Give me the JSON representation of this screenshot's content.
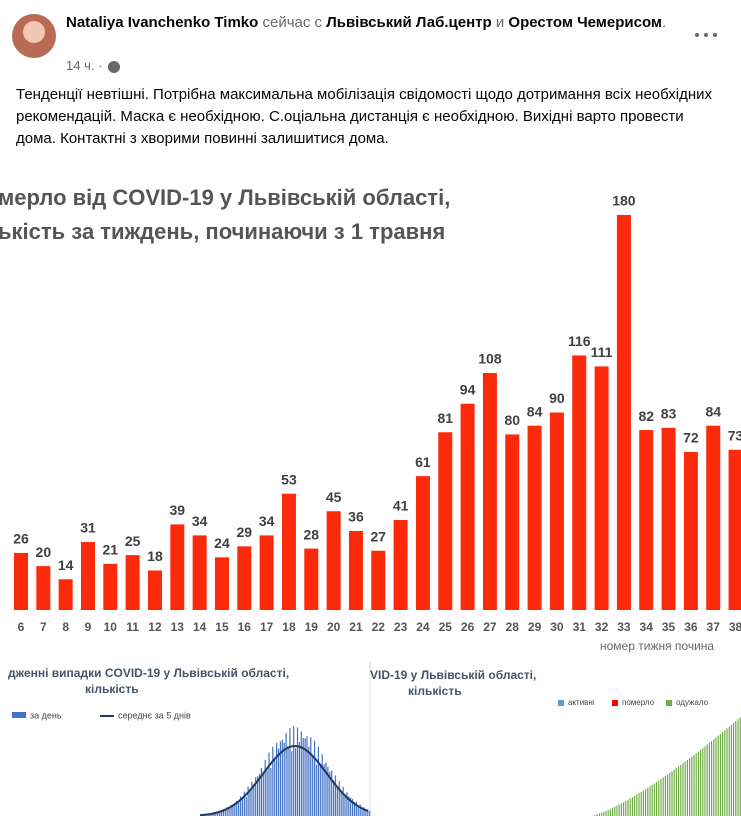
{
  "post": {
    "author": "Nataliya Ivanchenko Timko",
    "with_text": "сейчас с",
    "tag1": "Львівський Лаб.центр",
    "and_text": "и",
    "tag2": "Орестом Чемерисом",
    "period": ".",
    "time": "14 ч.",
    "dot": "·",
    "text": "Тенденції невтішні. Потрібна максимальна мобілізація свідомості щодо дотримання всіх необхідних рекомендацій. Маска є необхідною. С.оціальна дистанція є необхідною. Вихідні варто провести дома. Контактні з хворими повинні залишитися дома."
  },
  "chart_data": {
    "type": "bar",
    "title_lines": [
      "мерло від COVID-19 у Львівській області,",
      "ькість за тиждень, починаючи з 1 травня"
    ],
    "x_label": "номер тижня почина",
    "categories": [
      "6",
      "7",
      "8",
      "9",
      "10",
      "11",
      "12",
      "13",
      "14",
      "15",
      "16",
      "17",
      "18",
      "19",
      "20",
      "21",
      "22",
      "23",
      "24",
      "25",
      "26",
      "27",
      "28",
      "29",
      "30",
      "31",
      "32",
      "33",
      "34",
      "35",
      "36",
      "37",
      "38"
    ],
    "values": [
      26,
      20,
      14,
      31,
      21,
      25,
      18,
      39,
      34,
      24,
      29,
      34,
      53,
      28,
      45,
      36,
      27,
      41,
      61,
      81,
      94,
      108,
      80,
      84,
      90,
      116,
      111,
      180,
      82,
      83,
      72,
      84,
      73
    ],
    "color": "#fb2a0a"
  },
  "thumbnails": [
    {
      "title": "дженні випадки COVID-19 у Львівській області,",
      "subtitle": "кількість",
      "legend": [
        "за день",
        "середнє за 5 днів"
      ]
    },
    {
      "title": "VID-19 у Львівській області,",
      "subtitle": "кількість",
      "legend": [
        "активні",
        "померло",
        "одужало"
      ]
    }
  ]
}
